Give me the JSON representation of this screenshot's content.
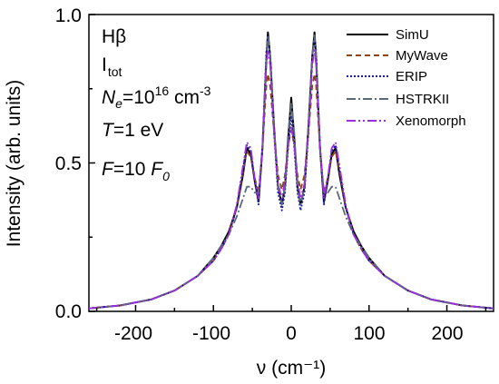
{
  "chart_data": {
    "type": "line",
    "xlabel": "ν (cm⁻¹)",
    "ylabel": "Intensity (arb. units)",
    "xlim": [
      -260,
      260
    ],
    "ylim": [
      0,
      1.0
    ],
    "x_ticks": [
      -200,
      -100,
      0,
      100,
      200
    ],
    "x_tick_labels": [
      "-200",
      "-100",
      "0",
      "100",
      "200"
    ],
    "y_ticks": [
      0.0,
      0.5,
      1.0
    ],
    "y_tick_labels": [
      "0.0",
      "0.5",
      "1.0"
    ],
    "annotations": {
      "line": "Hβ",
      "intensity_letter": "I",
      "intensity_sub": "tot",
      "ne_letter": "N",
      "ne_sub": "e",
      "ne_eq": "=10",
      "ne_exp": "16",
      "ne_unit": " cm",
      "ne_unit_exp": "-3",
      "t_letter": "T",
      "t_rest": "=1 eV",
      "f_letter": "F",
      "f_rest": "=10 ",
      "f0_letter": "F",
      "f0_sub": "0"
    },
    "legend_position": "top-right",
    "series": [
      {
        "name": "SimU",
        "color": "#000000",
        "dash": "solid",
        "x": [
          -260,
          -220,
          -180,
          -150,
          -120,
          -100,
          -90,
          -80,
          -70,
          -62,
          -57,
          -52,
          -47,
          -42,
          -37,
          -32,
          -30,
          -27,
          -22,
          -17,
          -12,
          -8,
          -4,
          0,
          4,
          8,
          12,
          17,
          22,
          27,
          30,
          32,
          37,
          42,
          47,
          52,
          57,
          62,
          70,
          80,
          90,
          100,
          120,
          150,
          180,
          220,
          260
        ],
        "y": [
          0.01,
          0.02,
          0.04,
          0.07,
          0.12,
          0.18,
          0.22,
          0.27,
          0.35,
          0.46,
          0.55,
          0.53,
          0.44,
          0.37,
          0.55,
          0.85,
          0.94,
          0.86,
          0.62,
          0.42,
          0.36,
          0.42,
          0.58,
          0.72,
          0.58,
          0.42,
          0.36,
          0.42,
          0.62,
          0.86,
          0.94,
          0.85,
          0.55,
          0.37,
          0.44,
          0.53,
          0.55,
          0.46,
          0.35,
          0.27,
          0.22,
          0.18,
          0.12,
          0.07,
          0.04,
          0.02,
          0.01
        ]
      },
      {
        "name": "MyWave",
        "color": "#8b4513",
        "dash": "6,4",
        "x": [
          -260,
          -220,
          -180,
          -150,
          -120,
          -100,
          -90,
          -80,
          -70,
          -62,
          -57,
          -52,
          -47,
          -42,
          -37,
          -32,
          -30,
          -27,
          -22,
          -17,
          -12,
          -8,
          -4,
          0,
          4,
          8,
          12,
          17,
          22,
          27,
          30,
          32,
          37,
          42,
          47,
          52,
          57,
          62,
          70,
          80,
          90,
          100,
          120,
          150,
          180,
          220,
          260
        ],
        "y": [
          0.01,
          0.02,
          0.04,
          0.07,
          0.12,
          0.17,
          0.21,
          0.26,
          0.35,
          0.47,
          0.54,
          0.52,
          0.45,
          0.4,
          0.55,
          0.76,
          0.8,
          0.76,
          0.6,
          0.46,
          0.41,
          0.46,
          0.56,
          0.61,
          0.56,
          0.46,
          0.41,
          0.46,
          0.6,
          0.76,
          0.8,
          0.76,
          0.55,
          0.4,
          0.45,
          0.52,
          0.54,
          0.47,
          0.35,
          0.26,
          0.21,
          0.17,
          0.12,
          0.07,
          0.04,
          0.02,
          0.01
        ]
      },
      {
        "name": "ERIP",
        "color": "#1a1aa0",
        "dash": "2,2",
        "x": [
          -260,
          -220,
          -180,
          -150,
          -120,
          -100,
          -90,
          -80,
          -70,
          -62,
          -57,
          -52,
          -47,
          -42,
          -37,
          -32,
          -30,
          -27,
          -22,
          -17,
          -12,
          -8,
          -4,
          0,
          4,
          8,
          12,
          17,
          22,
          27,
          30,
          32,
          37,
          42,
          47,
          52,
          57,
          62,
          70,
          80,
          90,
          100,
          120,
          150,
          180,
          220,
          260
        ],
        "y": [
          0.01,
          0.02,
          0.04,
          0.07,
          0.12,
          0.17,
          0.21,
          0.26,
          0.35,
          0.48,
          0.56,
          0.54,
          0.44,
          0.36,
          0.56,
          0.88,
          0.93,
          0.86,
          0.6,
          0.4,
          0.34,
          0.4,
          0.55,
          0.66,
          0.55,
          0.4,
          0.34,
          0.4,
          0.6,
          0.86,
          0.93,
          0.88,
          0.56,
          0.36,
          0.44,
          0.54,
          0.56,
          0.48,
          0.35,
          0.26,
          0.21,
          0.17,
          0.12,
          0.07,
          0.04,
          0.02,
          0.01
        ]
      },
      {
        "name": "HSTRKII",
        "color": "#5a6a7a",
        "dash": "10,3,2,3",
        "x": [
          -260,
          -220,
          -180,
          -150,
          -120,
          -100,
          -90,
          -80,
          -70,
          -62,
          -57,
          -52,
          -47,
          -42,
          -37,
          -32,
          -30,
          -27,
          -22,
          -17,
          -12,
          -8,
          -4,
          0,
          4,
          8,
          12,
          17,
          22,
          27,
          30,
          32,
          37,
          42,
          47,
          52,
          57,
          62,
          70,
          80,
          90,
          100,
          120,
          150,
          180,
          220,
          260
        ],
        "y": [
          0.01,
          0.02,
          0.04,
          0.07,
          0.12,
          0.18,
          0.22,
          0.26,
          0.32,
          0.38,
          0.42,
          0.42,
          0.4,
          0.4,
          0.55,
          0.86,
          0.93,
          0.86,
          0.62,
          0.42,
          0.36,
          0.42,
          0.6,
          0.7,
          0.6,
          0.42,
          0.36,
          0.42,
          0.62,
          0.86,
          0.93,
          0.86,
          0.55,
          0.4,
          0.4,
          0.42,
          0.42,
          0.38,
          0.32,
          0.26,
          0.22,
          0.18,
          0.12,
          0.07,
          0.04,
          0.02,
          0.01
        ]
      },
      {
        "name": "Xenomorph",
        "color": "#9b30e0",
        "dash": "10,3,2,3,2,3",
        "x": [
          -260,
          -220,
          -180,
          -150,
          -120,
          -100,
          -90,
          -80,
          -70,
          -62,
          -57,
          -52,
          -47,
          -42,
          -37,
          -32,
          -30,
          -27,
          -22,
          -17,
          -12,
          -8,
          -4,
          0,
          4,
          8,
          12,
          17,
          22,
          27,
          30,
          32,
          37,
          42,
          47,
          52,
          57,
          62,
          70,
          80,
          90,
          100,
          120,
          150,
          180,
          220,
          260
        ],
        "y": [
          0.01,
          0.02,
          0.04,
          0.07,
          0.12,
          0.17,
          0.21,
          0.26,
          0.36,
          0.49,
          0.57,
          0.55,
          0.45,
          0.38,
          0.56,
          0.83,
          0.88,
          0.83,
          0.6,
          0.43,
          0.38,
          0.44,
          0.56,
          0.62,
          0.56,
          0.44,
          0.38,
          0.43,
          0.6,
          0.83,
          0.88,
          0.83,
          0.56,
          0.38,
          0.45,
          0.55,
          0.57,
          0.49,
          0.36,
          0.26,
          0.21,
          0.17,
          0.12,
          0.07,
          0.04,
          0.02,
          0.01
        ]
      }
    ]
  }
}
